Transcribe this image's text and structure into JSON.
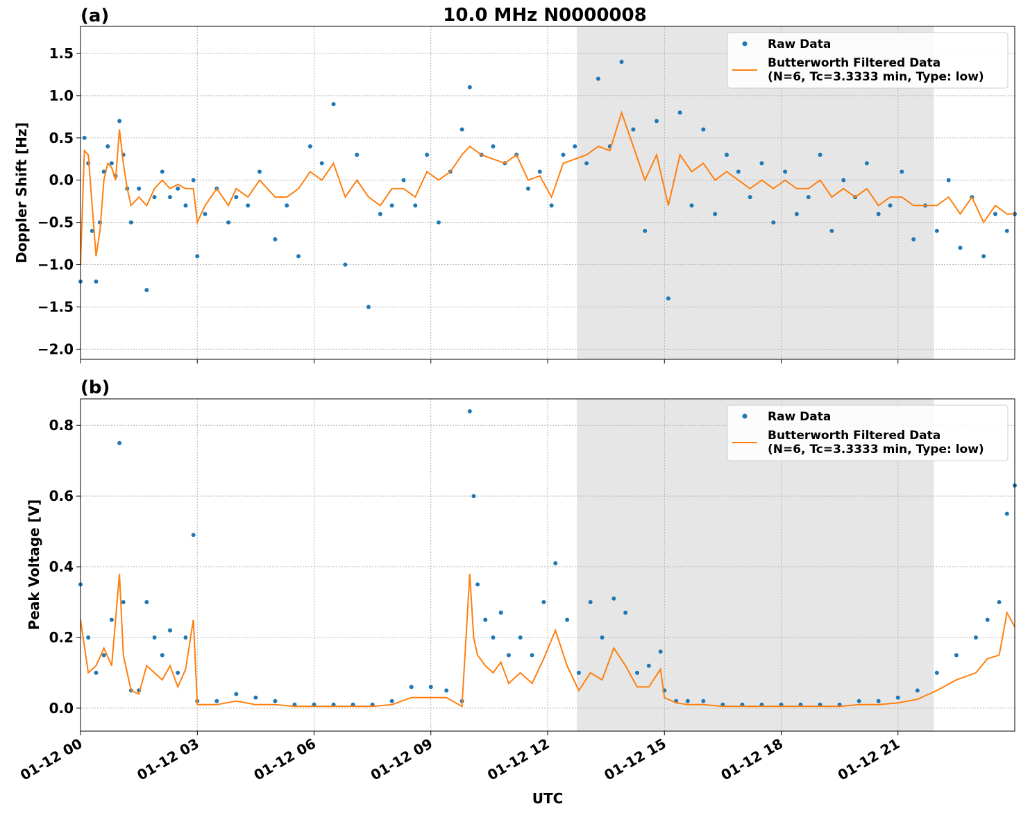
{
  "figure": {
    "title": "10.0 MHz N0000008",
    "xlabel": "UTC",
    "x_tick_labels": [
      "01-12 00",
      "01-12 03",
      "01-12 06",
      "01-12 09",
      "01-12 12",
      "01-12 15",
      "01-12 18",
      "01-12 21"
    ]
  },
  "chart_data": [
    {
      "type": "scatter",
      "panel_label": "(a)",
      "ylabel": "Doppler Shift [Hz]",
      "x_unit": "hours UTC",
      "xlim": [
        0,
        24
      ],
      "ylim": [
        -2.12,
        1.82
      ],
      "yticks": [
        -2.0,
        -1.5,
        -1.0,
        -0.5,
        0.0,
        0.5,
        1.0,
        1.5
      ],
      "ytick_labels": [
        "−2.0",
        "−1.5",
        "−1.0",
        "−0.5",
        "0.0",
        "0.5",
        "1.0",
        "1.5"
      ],
      "grid": true,
      "legend_position": "top-right",
      "shaded_x_range": [
        12.75,
        21.92
      ],
      "series": [
        {
          "name": "Raw Data",
          "kind": "points",
          "color": "#1f77b4",
          "x": [
            0.0,
            0.1,
            0.2,
            0.3,
            0.4,
            0.5,
            0.6,
            0.7,
            0.8,
            0.9,
            1.0,
            1.1,
            1.2,
            1.3,
            1.5,
            1.7,
            1.9,
            2.1,
            2.3,
            2.5,
            2.7,
            2.9,
            3.0,
            3.2,
            3.5,
            3.8,
            4.0,
            4.3,
            4.6,
            5.0,
            5.3,
            5.6,
            5.9,
            6.2,
            6.5,
            6.8,
            7.1,
            7.4,
            7.7,
            8.0,
            8.3,
            8.6,
            8.9,
            9.2,
            9.5,
            9.8,
            10.0,
            10.3,
            10.6,
            10.9,
            11.2,
            11.5,
            11.8,
            12.1,
            12.4,
            12.7,
            13.0,
            13.3,
            13.6,
            13.9,
            14.2,
            14.5,
            14.8,
            15.1,
            15.4,
            15.7,
            16.0,
            16.3,
            16.6,
            16.9,
            17.2,
            17.5,
            17.8,
            18.1,
            18.4,
            18.7,
            19.0,
            19.3,
            19.6,
            19.9,
            20.2,
            20.5,
            20.8,
            21.1,
            21.4,
            21.7,
            22.0,
            22.3,
            22.6,
            22.9,
            23.2,
            23.5,
            23.8,
            24.0
          ],
          "y": [
            -1.2,
            0.5,
            0.2,
            -0.6,
            -1.2,
            -0.5,
            0.1,
            0.4,
            0.2,
            0.05,
            0.7,
            0.3,
            -0.1,
            -0.5,
            -0.1,
            -1.3,
            -0.2,
            0.1,
            -0.2,
            -0.1,
            -0.3,
            0.0,
            -0.9,
            -0.4,
            -0.1,
            -0.5,
            -0.2,
            -0.3,
            0.1,
            -0.7,
            -0.3,
            -0.9,
            0.4,
            0.2,
            0.9,
            -1.0,
            0.3,
            -1.5,
            -0.4,
            -0.3,
            0.0,
            -0.3,
            0.3,
            -0.5,
            0.1,
            0.6,
            1.1,
            0.3,
            0.4,
            0.2,
            0.3,
            -0.1,
            0.1,
            -0.3,
            0.3,
            0.4,
            0.2,
            1.2,
            0.4,
            1.4,
            0.6,
            -0.6,
            0.7,
            -1.4,
            0.8,
            -0.3,
            0.6,
            -0.4,
            0.3,
            0.1,
            -0.2,
            0.2,
            -0.5,
            0.1,
            -0.4,
            -0.2,
            0.3,
            -0.6,
            0.0,
            -0.2,
            0.2,
            -0.4,
            -0.3,
            0.1,
            -0.7,
            -0.3,
            -0.6,
            0.0,
            -0.8,
            -0.2,
            -0.9,
            -0.4,
            -0.6,
            -0.4
          ]
        },
        {
          "name": "Butterworth Filtered Data\n(N=6, Tc=3.3333 min, Type: low)",
          "kind": "line",
          "color": "#ff7f0e",
          "x": [
            0.0,
            0.1,
            0.2,
            0.3,
            0.4,
            0.5,
            0.6,
            0.7,
            0.8,
            0.9,
            1.0,
            1.1,
            1.2,
            1.3,
            1.5,
            1.7,
            1.9,
            2.1,
            2.3,
            2.5,
            2.7,
            2.9,
            3.0,
            3.2,
            3.5,
            3.8,
            4.0,
            4.3,
            4.6,
            5.0,
            5.3,
            5.6,
            5.9,
            6.2,
            6.5,
            6.8,
            7.1,
            7.4,
            7.7,
            8.0,
            8.3,
            8.6,
            8.9,
            9.2,
            9.5,
            9.8,
            10.0,
            10.3,
            10.6,
            10.9,
            11.2,
            11.5,
            11.8,
            12.1,
            12.4,
            12.7,
            13.0,
            13.3,
            13.6,
            13.9,
            14.2,
            14.5,
            14.8,
            15.1,
            15.4,
            15.7,
            16.0,
            16.3,
            16.6,
            16.9,
            17.2,
            17.5,
            17.8,
            18.1,
            18.4,
            18.7,
            19.0,
            19.3,
            19.6,
            19.9,
            20.2,
            20.5,
            20.8,
            21.1,
            21.4,
            21.7,
            22.0,
            22.3,
            22.6,
            22.9,
            23.2,
            23.5,
            23.8,
            24.0
          ],
          "y": [
            -1.0,
            0.35,
            0.3,
            -0.3,
            -0.9,
            -0.6,
            0.0,
            0.2,
            0.15,
            0.0,
            0.6,
            0.2,
            -0.1,
            -0.3,
            -0.2,
            -0.3,
            -0.1,
            0.0,
            -0.1,
            -0.05,
            -0.1,
            -0.1,
            -0.5,
            -0.3,
            -0.1,
            -0.3,
            -0.1,
            -0.2,
            0.0,
            -0.2,
            -0.2,
            -0.1,
            0.1,
            0.0,
            0.2,
            -0.2,
            0.0,
            -0.2,
            -0.3,
            -0.1,
            -0.1,
            -0.2,
            0.1,
            0.0,
            0.1,
            0.3,
            0.4,
            0.3,
            0.25,
            0.2,
            0.3,
            0.0,
            0.05,
            -0.2,
            0.2,
            0.25,
            0.3,
            0.4,
            0.35,
            0.8,
            0.4,
            0.0,
            0.3,
            -0.3,
            0.3,
            0.1,
            0.2,
            0.0,
            0.1,
            0.0,
            -0.1,
            0.0,
            -0.1,
            0.0,
            -0.1,
            -0.1,
            0.0,
            -0.2,
            -0.1,
            -0.2,
            -0.1,
            -0.3,
            -0.2,
            -0.2,
            -0.3,
            -0.3,
            -0.3,
            -0.2,
            -0.4,
            -0.2,
            -0.5,
            -0.3,
            -0.4,
            -0.4
          ]
        }
      ]
    },
    {
      "type": "scatter",
      "panel_label": "(b)",
      "ylabel": "Peak Voltage [V]",
      "x_unit": "hours UTC",
      "xlim": [
        0,
        24
      ],
      "ylim": [
        -0.065,
        0.875
      ],
      "yticks": [
        0.0,
        0.2,
        0.4,
        0.6,
        0.8
      ],
      "ytick_labels": [
        "0.0",
        "0.2",
        "0.4",
        "0.6",
        "0.8"
      ],
      "grid": true,
      "legend_position": "top-right",
      "shaded_x_range": [
        12.75,
        21.92
      ],
      "series": [
        {
          "name": "Raw Data",
          "kind": "points",
          "color": "#1f77b4",
          "x": [
            0.0,
            0.2,
            0.4,
            0.6,
            0.8,
            1.0,
            1.1,
            1.3,
            1.5,
            1.7,
            1.9,
            2.1,
            2.3,
            2.5,
            2.7,
            2.9,
            3.0,
            3.5,
            4.0,
            4.5,
            5.0,
            5.5,
            6.0,
            6.5,
            7.0,
            7.5,
            8.0,
            8.5,
            9.0,
            9.4,
            9.8,
            10.0,
            10.1,
            10.2,
            10.4,
            10.6,
            10.8,
            11.0,
            11.3,
            11.6,
            11.9,
            12.2,
            12.5,
            12.8,
            13.1,
            13.4,
            13.7,
            14.0,
            14.3,
            14.6,
            14.9,
            15.0,
            15.3,
            15.6,
            16.0,
            16.5,
            17.0,
            17.5,
            18.0,
            18.5,
            19.0,
            19.5,
            20.0,
            20.5,
            21.0,
            21.5,
            22.0,
            22.5,
            23.0,
            23.3,
            23.6,
            23.8,
            24.0
          ],
          "y": [
            0.35,
            0.2,
            0.1,
            0.15,
            0.25,
            0.75,
            0.3,
            0.05,
            0.05,
            0.3,
            0.2,
            0.15,
            0.22,
            0.1,
            0.2,
            0.49,
            0.02,
            0.02,
            0.04,
            0.03,
            0.02,
            0.01,
            0.01,
            0.01,
            0.01,
            0.01,
            0.02,
            0.06,
            0.06,
            0.05,
            0.02,
            0.84,
            0.6,
            0.35,
            0.25,
            0.2,
            0.27,
            0.15,
            0.2,
            0.15,
            0.3,
            0.41,
            0.25,
            0.1,
            0.3,
            0.2,
            0.31,
            0.27,
            0.1,
            0.12,
            0.16,
            0.05,
            0.02,
            0.02,
            0.02,
            0.01,
            0.01,
            0.01,
            0.01,
            0.01,
            0.01,
            0.01,
            0.02,
            0.02,
            0.03,
            0.05,
            0.1,
            0.15,
            0.2,
            0.25,
            0.3,
            0.55,
            0.63
          ]
        },
        {
          "name": "Butterworth Filtered Data\n(N=6, Tc=3.3333 min, Type: low)",
          "kind": "line",
          "color": "#ff7f0e",
          "x": [
            0.0,
            0.2,
            0.4,
            0.6,
            0.8,
            1.0,
            1.1,
            1.3,
            1.5,
            1.7,
            1.9,
            2.1,
            2.3,
            2.5,
            2.7,
            2.9,
            3.0,
            3.5,
            4.0,
            4.5,
            5.0,
            5.5,
            6.0,
            6.5,
            7.0,
            7.5,
            8.0,
            8.5,
            9.0,
            9.4,
            9.8,
            10.0,
            10.1,
            10.2,
            10.4,
            10.6,
            10.8,
            11.0,
            11.3,
            11.6,
            11.9,
            12.2,
            12.5,
            12.8,
            13.1,
            13.4,
            13.7,
            14.0,
            14.3,
            14.6,
            14.9,
            15.0,
            15.3,
            15.6,
            16.0,
            16.5,
            17.0,
            17.5,
            18.0,
            18.5,
            19.0,
            19.5,
            20.0,
            20.5,
            21.0,
            21.5,
            22.0,
            22.5,
            23.0,
            23.3,
            23.6,
            23.8,
            24.0
          ],
          "y": [
            0.25,
            0.1,
            0.12,
            0.17,
            0.12,
            0.38,
            0.15,
            0.05,
            0.04,
            0.12,
            0.1,
            0.08,
            0.12,
            0.06,
            0.11,
            0.25,
            0.01,
            0.01,
            0.02,
            0.01,
            0.01,
            0.005,
            0.005,
            0.005,
            0.005,
            0.005,
            0.01,
            0.03,
            0.03,
            0.03,
            0.005,
            0.38,
            0.2,
            0.15,
            0.12,
            0.1,
            0.13,
            0.07,
            0.1,
            0.07,
            0.14,
            0.22,
            0.12,
            0.05,
            0.1,
            0.08,
            0.17,
            0.12,
            0.06,
            0.06,
            0.11,
            0.03,
            0.015,
            0.01,
            0.01,
            0.005,
            0.005,
            0.005,
            0.005,
            0.005,
            0.005,
            0.005,
            0.01,
            0.01,
            0.015,
            0.025,
            0.05,
            0.08,
            0.1,
            0.14,
            0.15,
            0.27,
            0.23
          ]
        }
      ]
    }
  ]
}
